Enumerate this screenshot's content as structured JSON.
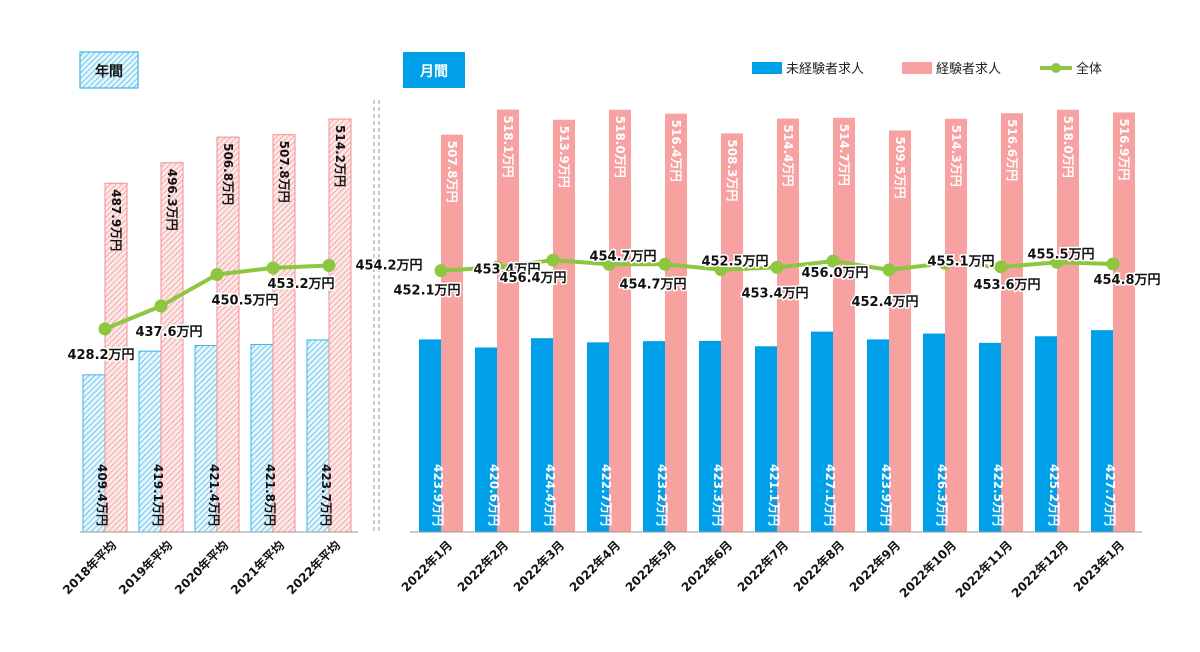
{
  "sections": {
    "annual_label": "年間",
    "monthly_label": "月間"
  },
  "legend": [
    {
      "name": "未経験者求人",
      "color": "#00a0e9"
    },
    {
      "name": "経験者求人",
      "color": "#f7a1a1"
    },
    {
      "name": "全体",
      "color": "#8dc63f"
    }
  ],
  "chart_data": {
    "type": "bar",
    "unit_suffix": "万円",
    "categories": [
      "2018年平均",
      "2019年平均",
      "2020年平均",
      "2021年平均",
      "2022年平均",
      "2022年1月",
      "2022年2月",
      "2022年3月",
      "2022年4月",
      "2022年5月",
      "2022年6月",
      "2022年7月",
      "2022年8月",
      "2022年9月",
      "2022年10月",
      "2022年11月",
      "2022年12月",
      "2023年1月"
    ],
    "annual_count": 5,
    "series": [
      {
        "name": "未経験者求人",
        "type": "bar",
        "color": "#00a0e9",
        "values": [
          409.4,
          419.1,
          421.4,
          421.8,
          423.7,
          423.9,
          420.6,
          424.4,
          422.7,
          423.2,
          423.3,
          421.1,
          427.1,
          423.9,
          426.3,
          422.5,
          425.2,
          427.7
        ],
        "labels": [
          "409.4万円",
          "419.1万円",
          "421.4万円",
          "421.8万円",
          "423.7万円",
          "423.9万円",
          "420.6万円",
          "424.4万円",
          "422.7万円",
          "423.2万円",
          "423.3万円",
          "421.1万円",
          "427.1万円",
          "423.9万円",
          "426.3万円",
          "422.5万円",
          "425.2万円",
          "427.7万円"
        ]
      },
      {
        "name": "経験者求人",
        "type": "bar",
        "color": "#f7a1a1",
        "values": [
          487.9,
          496.3,
          506.8,
          507.8,
          514.2,
          507.8,
          518.1,
          513.9,
          518.0,
          516.4,
          508.3,
          514.4,
          514.7,
          509.5,
          514.3,
          516.6,
          518.0,
          516.9
        ],
        "labels": [
          "487.9万円",
          "496.3万円",
          "506.8万円",
          "507.8万円",
          "514.2万円",
          "507.8万円",
          "518.1万円",
          "513.9万円",
          "518.0万円",
          "516.4万円",
          "508.3万円",
          "514.4万円",
          "514.7万円",
          "509.5万円",
          "514.3万円",
          "516.6万円",
          "518.0万円",
          "516.9万円"
        ]
      },
      {
        "name": "全体",
        "type": "line",
        "color": "#8dc63f",
        "values": [
          428.2,
          437.6,
          450.5,
          453.2,
          454.2,
          452.1,
          453.4,
          456.4,
          454.7,
          454.7,
          452.5,
          453.4,
          456.0,
          452.4,
          455.1,
          453.6,
          455.5,
          454.8
        ],
        "labels": [
          "428.2万円",
          "437.6万円",
          "450.5万円",
          "453.2万円",
          "454.2万円",
          "452.1万円",
          "453.4万円",
          "456.4万円",
          "454.7万円",
          "454.7万円",
          "452.5万円",
          "453.4万円",
          "456.0万円",
          "452.4万円",
          "455.1万円",
          "453.6万円",
          "455.5万円",
          "454.8万円"
        ]
      }
    ],
    "ylim": [
      345,
      522
    ],
    "grid": false,
    "legend_position": "top-right"
  }
}
